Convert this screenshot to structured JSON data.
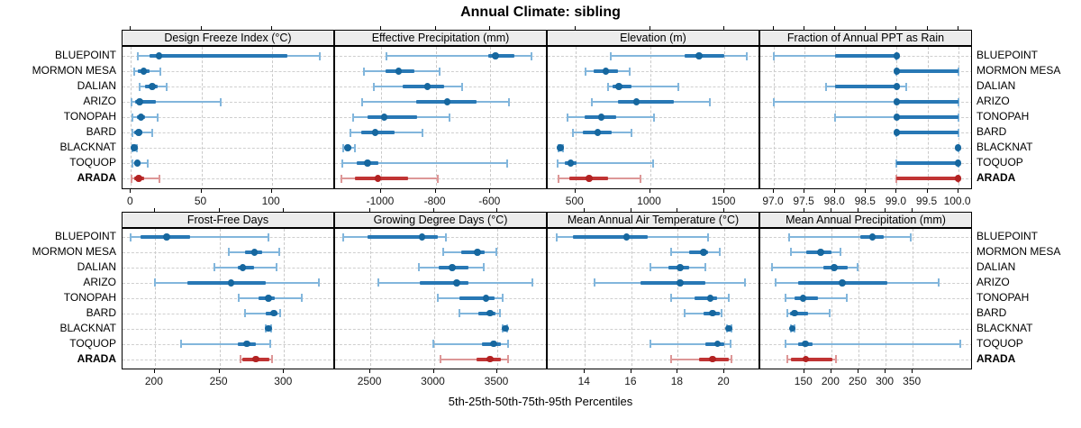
{
  "title": "Annual Climate: sibling",
  "caption": "5th-25th-50th-75th-95th Percentiles",
  "sites": [
    "BLUEPOINT",
    "MORMON MESA",
    "DALIAN",
    "ARIZO",
    "TONOPAH",
    "BARD",
    "BLACKNAT",
    "TOQUOP",
    "ARADA"
  ],
  "highlight_site": "ARADA",
  "colors": {
    "blue_whisker": "#82b6dc",
    "blue_bar": "#2878b5",
    "blue_dot": "#16679f",
    "red_whisker": "#dd9797",
    "red_bar": "#c03434",
    "red_dot": "#b22222",
    "strip_bg": "#ececec",
    "grid": "#c9c9c9",
    "panel_border": "#000000"
  },
  "chart_data": {
    "type": "dotplot-percentiles",
    "title": "Annual Climate: sibling",
    "xlabel": "5th-25th-50th-75th-95th Percentiles",
    "percentiles": [
      5,
      25,
      50,
      75,
      95
    ],
    "sites": [
      "BLUEPOINT",
      "MORMON MESA",
      "DALIAN",
      "ARIZO",
      "TONOPAH",
      "BARD",
      "BLACKNAT",
      "TOQUOP",
      "ARADA"
    ],
    "panels": [
      {
        "title": "Design Freeze Index (°C)",
        "slug": "design-freeze-index",
        "row": 0,
        "col": 0,
        "xmin": -6,
        "xmax": 145,
        "tick_values": [
          0,
          50,
          100
        ],
        "tick_labels": [
          "0",
          "50",
          "100"
        ],
        "values": [
          [
            5,
            13,
            20,
            111,
            134
          ],
          [
            2,
            5,
            9,
            13,
            21
          ],
          [
            6,
            10,
            15,
            19,
            25
          ],
          [
            0.5,
            3,
            6,
            18,
            64
          ],
          [
            1,
            4,
            7,
            10,
            19
          ],
          [
            0.7,
            2.5,
            5.5,
            8,
            15
          ],
          [
            1,
            1.5,
            2.4,
            3.2,
            4
          ],
          [
            1,
            2.5,
            4.5,
            7,
            12
          ],
          [
            0.6,
            2.5,
            5.4,
            9.2,
            20.4
          ]
        ]
      },
      {
        "title": "Effective Precipitation (mm)",
        "slug": "effective-precipitation",
        "row": 0,
        "col": 1,
        "xmin": -1168,
        "xmax": -390,
        "tick_values": [
          -1000,
          -800,
          -600
        ],
        "tick_labels": [
          "-1000",
          "-800",
          "-600"
        ],
        "values": [
          [
            -981,
            -609,
            -581,
            -511,
            -448
          ],
          [
            -1063,
            -983,
            -936,
            -878,
            -785
          ],
          [
            -1026,
            -922,
            -831,
            -769,
            -702
          ],
          [
            -1070,
            -872,
            -758,
            -650,
            -533
          ],
          [
            -1103,
            -1050,
            -989,
            -869,
            -750
          ],
          [
            -1113,
            -1074,
            -1022,
            -952,
            -850
          ],
          [
            -1139,
            -1130,
            -1122,
            -1110,
            -1097
          ],
          [
            -1141,
            -1089,
            -1050,
            -1011,
            -539
          ],
          [
            -1144,
            -1094,
            -1011,
            -902,
            -792
          ]
        ]
      },
      {
        "title": "Elevation (m)",
        "slug": "elevation",
        "row": 0,
        "col": 2,
        "xmin": 314,
        "xmax": 1741,
        "tick_values": [
          500,
          1000,
          1500
        ],
        "tick_labels": [
          "500",
          "1000",
          "1500"
        ],
        "values": [
          [
            739,
            1234,
            1330,
            1500,
            1649
          ],
          [
            567,
            622,
            704,
            786,
            863
          ],
          [
            718,
            751,
            790,
            877,
            1190
          ],
          [
            608,
            786,
            908,
            1163,
            1404
          ],
          [
            445,
            561,
            673,
            775,
            1030
          ],
          [
            486,
            551,
            649,
            745,
            877
          ],
          [
            384,
            390,
            398,
            406,
            418
          ],
          [
            378,
            429,
            469,
            510,
            1024
          ],
          [
            384,
            459,
            592,
            720,
            934
          ]
        ]
      },
      {
        "title": "Fraction of Annual PPT as Rain",
        "slug": "fraction-ppt-rain",
        "row": 0,
        "col": 3,
        "xmin": 96.78,
        "xmax": 100.24,
        "tick_values": [
          97.0,
          97.5,
          98.0,
          98.5,
          99.0,
          99.5,
          100.0
        ],
        "tick_labels": [
          "97.0",
          "97.5",
          "98.0",
          "98.5",
          "99.0",
          "99.5",
          "100.0"
        ],
        "values": [
          [
            97.0,
            98.0,
            99.0,
            99.0,
            99.0
          ],
          [
            99.0,
            99.0,
            99.0,
            100.0,
            100.0
          ],
          [
            97.85,
            98.0,
            99.0,
            99.0,
            99.15
          ],
          [
            97.0,
            99.0,
            99.0,
            100.0,
            100.0
          ],
          [
            98.0,
            99.0,
            99.0,
            100.0,
            100.0
          ],
          [
            99.0,
            99.0,
            99.0,
            100.0,
            100.0
          ],
          [
            100.0,
            100.0,
            100.0,
            100.0,
            100.0
          ],
          [
            99.0,
            99.0,
            100.0,
            100.0,
            100.0
          ],
          [
            99.0,
            99.0,
            100.0,
            100.0,
            100.0
          ]
        ]
      },
      {
        "title": "Frost-Free Days",
        "slug": "frost-free-days",
        "row": 1,
        "col": 0,
        "xmin": 175,
        "xmax": 339.5,
        "tick_values": [
          200,
          250,
          300
        ],
        "tick_labels": [
          "200",
          "250",
          "300"
        ],
        "values": [
          [
            181,
            189,
            209,
            227,
            288
          ],
          [
            257,
            270,
            277,
            283,
            296
          ],
          [
            246,
            264,
            268,
            277,
            294
          ],
          [
            200,
            225,
            259,
            286,
            327
          ],
          [
            265,
            280,
            288,
            293,
            314
          ],
          [
            270,
            286,
            292,
            295,
            297
          ],
          [
            286,
            287,
            288,
            289,
            290
          ],
          [
            220,
            264,
            271,
            278,
            289
          ],
          [
            266,
            268,
            278,
            289,
            291
          ]
        ]
      },
      {
        "title": "Growing Degree Days (°C)",
        "slug": "growing-degree-days",
        "row": 1,
        "col": 1,
        "xmin": 2223,
        "xmax": 3897,
        "tick_values": [
          2500,
          3000,
          3500
        ],
        "tick_labels": [
          "2500",
          "3000",
          "3500"
        ],
        "values": [
          [
            2290,
            2479,
            2908,
            3034,
            3094
          ],
          [
            3071,
            3215,
            3342,
            3400,
            3493
          ],
          [
            2885,
            3041,
            3145,
            3273,
            3396
          ],
          [
            2560,
            2890,
            3180,
            3273,
            3776
          ],
          [
            3029,
            3203,
            3412,
            3481,
            3544
          ],
          [
            3203,
            3354,
            3442,
            3488,
            3521
          ],
          [
            3540,
            3550,
            3563,
            3572,
            3580
          ],
          [
            2994,
            3377,
            3470,
            3528,
            3581
          ],
          [
            3055,
            3336,
            3444,
            3528,
            3588
          ]
        ]
      },
      {
        "title": "Mean Annual Air Temperature (°C)",
        "slug": "mean-annual-air-temperature",
        "row": 1,
        "col": 2,
        "xmin": 12.4,
        "xmax": 21.55,
        "tick_values": [
          14,
          16,
          18,
          20
        ],
        "tick_labels": [
          "14",
          "16",
          "18",
          "20"
        ],
        "values": [
          [
            12.8,
            13.5,
            15.8,
            16.7,
            19.3
          ],
          [
            17.7,
            18.5,
            19.1,
            19.3,
            19.8
          ],
          [
            16.8,
            17.6,
            18.1,
            18.5,
            19.2
          ],
          [
            14.4,
            16.4,
            18.1,
            19.2,
            20.9
          ],
          [
            17.7,
            18.7,
            19.4,
            19.7,
            20.2
          ],
          [
            18.3,
            19.1,
            19.5,
            19.8,
            19.9
          ],
          [
            20.1,
            20.15,
            20.2,
            20.25,
            20.3
          ],
          [
            16.8,
            19.2,
            19.7,
            20.0,
            20.25
          ],
          [
            17.7,
            18.9,
            19.5,
            20.2,
            20.3
          ]
        ]
      },
      {
        "title": "Mean Annual Precipitation (mm)",
        "slug": "mean-annual-precipitation",
        "row": 1,
        "col": 3,
        "xmin": 69,
        "xmax": 461,
        "tick_values": [
          150,
          200,
          250,
          300,
          350
        ],
        "tick_labels": [
          "150",
          "200",
          "250",
          "300",
          "350"
        ],
        "values": [
          [
            122,
            253,
            276,
            296,
            346
          ],
          [
            126,
            154,
            180,
            200,
            216
          ],
          [
            91,
            185,
            205,
            230,
            249
          ],
          [
            97,
            139,
            220,
            304,
            398
          ],
          [
            115,
            132,
            148,
            175,
            229
          ],
          [
            118,
            124,
            132,
            157,
            197
          ],
          [
            125,
            127,
            128,
            130,
            132
          ],
          [
            116,
            138,
            152,
            166,
            437
          ],
          [
            118,
            125,
            153,
            202,
            209
          ]
        ]
      }
    ]
  }
}
